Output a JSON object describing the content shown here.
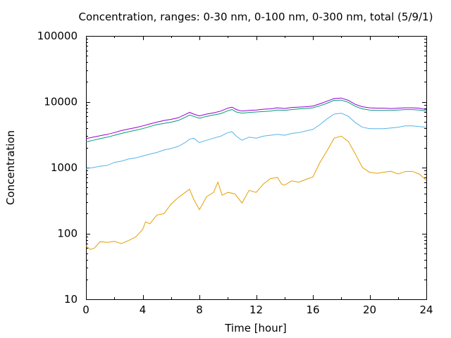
{
  "chart_data": {
    "type": "line",
    "title": "Concentration, ranges: 0-30 nm, 0-100 nm, 0-300 nm, total (5/9/1)",
    "xlabel": "Time [hour]",
    "ylabel": "Concentration",
    "xlim": [
      0,
      24
    ],
    "ylim": [
      10,
      100000
    ],
    "yscale": "log",
    "grid": false,
    "legend": "none",
    "xticks": [
      0,
      4,
      8,
      12,
      16,
      20,
      24
    ],
    "xtick_labels": [
      "0",
      "4",
      "8",
      "12",
      "16",
      "20",
      "24"
    ],
    "yticks": [
      10,
      100,
      1000,
      10000,
      100000
    ],
    "ytick_labels": [
      "10",
      "100",
      "1000",
      "10000",
      "100000"
    ],
    "series": [
      {
        "color": "#e69f00",
        "points": [
          [
            0,
            65
          ],
          [
            0.3,
            57
          ],
          [
            0.6,
            60
          ],
          [
            1,
            75
          ],
          [
            1.5,
            73
          ],
          [
            2,
            76
          ],
          [
            2.5,
            70
          ],
          [
            3,
            78
          ],
          [
            3.5,
            88
          ],
          [
            4,
            115
          ],
          [
            4.2,
            150
          ],
          [
            4.5,
            140
          ],
          [
            5,
            190
          ],
          [
            5.5,
            200
          ],
          [
            6,
            280
          ],
          [
            6.5,
            350
          ],
          [
            7,
            420
          ],
          [
            7.3,
            470
          ],
          [
            7.6,
            330
          ],
          [
            8,
            230
          ],
          [
            8.5,
            360
          ],
          [
            9,
            420
          ],
          [
            9.3,
            600
          ],
          [
            9.6,
            380
          ],
          [
            10,
            420
          ],
          [
            10.5,
            400
          ],
          [
            11,
            290
          ],
          [
            11.5,
            450
          ],
          [
            12,
            420
          ],
          [
            12.5,
            560
          ],
          [
            13,
            680
          ],
          [
            13.5,
            710
          ],
          [
            13.8,
            560
          ],
          [
            14,
            540
          ],
          [
            14.5,
            630
          ],
          [
            15,
            600
          ],
          [
            15.5,
            660
          ],
          [
            16,
            720
          ],
          [
            16.5,
            1200
          ],
          [
            17,
            1800
          ],
          [
            17.5,
            2800
          ],
          [
            18,
            3000
          ],
          [
            18.5,
            2500
          ],
          [
            19,
            1600
          ],
          [
            19.5,
            1000
          ],
          [
            20,
            850
          ],
          [
            20.5,
            820
          ],
          [
            21,
            850
          ],
          [
            21.5,
            880
          ],
          [
            22,
            800
          ],
          [
            22.5,
            870
          ],
          [
            23,
            880
          ],
          [
            23.5,
            800
          ],
          [
            24,
            640
          ]
        ]
      },
      {
        "color": "#56b4e9",
        "points": [
          [
            0,
            970
          ],
          [
            0.5,
            1000
          ],
          [
            1,
            1050
          ],
          [
            1.5,
            1080
          ],
          [
            2,
            1200
          ],
          [
            2.5,
            1250
          ],
          [
            3,
            1350
          ],
          [
            3.5,
            1400
          ],
          [
            4,
            1500
          ],
          [
            4.5,
            1600
          ],
          [
            5,
            1700
          ],
          [
            5.5,
            1850
          ],
          [
            6,
            1950
          ],
          [
            6.5,
            2100
          ],
          [
            7,
            2400
          ],
          [
            7.3,
            2700
          ],
          [
            7.6,
            2800
          ],
          [
            8,
            2400
          ],
          [
            8.5,
            2600
          ],
          [
            9,
            2800
          ],
          [
            9.5,
            3000
          ],
          [
            10,
            3400
          ],
          [
            10.3,
            3500
          ],
          [
            10.6,
            3000
          ],
          [
            11,
            2600
          ],
          [
            11.5,
            2900
          ],
          [
            12,
            2800
          ],
          [
            12.5,
            3000
          ],
          [
            13,
            3100
          ],
          [
            13.5,
            3200
          ],
          [
            14,
            3100
          ],
          [
            14.5,
            3300
          ],
          [
            15,
            3400
          ],
          [
            15.5,
            3600
          ],
          [
            16,
            3800
          ],
          [
            16.5,
            4500
          ],
          [
            17,
            5500
          ],
          [
            17.5,
            6500
          ],
          [
            18,
            6700
          ],
          [
            18.5,
            6000
          ],
          [
            19,
            4800
          ],
          [
            19.5,
            4100
          ],
          [
            20,
            3900
          ],
          [
            20.5,
            3900
          ],
          [
            21,
            3900
          ],
          [
            21.5,
            4000
          ],
          [
            22,
            4100
          ],
          [
            22.5,
            4300
          ],
          [
            23,
            4300
          ],
          [
            23.5,
            4200
          ],
          [
            24,
            4100
          ]
        ]
      },
      {
        "color": "#009e73",
        "points": [
          [
            0,
            2450
          ],
          [
            0.5,
            2600
          ],
          [
            1,
            2750
          ],
          [
            1.5,
            2900
          ],
          [
            2,
            3100
          ],
          [
            2.5,
            3300
          ],
          [
            3,
            3500
          ],
          [
            3.5,
            3700
          ],
          [
            4,
            3900
          ],
          [
            4.5,
            4200
          ],
          [
            5,
            4500
          ],
          [
            5.5,
            4700
          ],
          [
            6,
            4900
          ],
          [
            6.5,
            5200
          ],
          [
            7,
            5800
          ],
          [
            7.3,
            6300
          ],
          [
            7.6,
            6000
          ],
          [
            8,
            5600
          ],
          [
            8.5,
            6000
          ],
          [
            9,
            6300
          ],
          [
            9.5,
            6600
          ],
          [
            10,
            7300
          ],
          [
            10.3,
            7600
          ],
          [
            10.6,
            7000
          ],
          [
            11,
            6700
          ],
          [
            11.5,
            6900
          ],
          [
            12,
            7000
          ],
          [
            12.5,
            7100
          ],
          [
            13,
            7200
          ],
          [
            13.5,
            7500
          ],
          [
            14,
            7400
          ],
          [
            14.5,
            7600
          ],
          [
            15,
            7800
          ],
          [
            15.5,
            7900
          ],
          [
            16,
            8100
          ],
          [
            16.5,
            8700
          ],
          [
            17,
            9500
          ],
          [
            17.5,
            10500
          ],
          [
            18,
            10600
          ],
          [
            18.5,
            9800
          ],
          [
            19,
            8500
          ],
          [
            19.5,
            7800
          ],
          [
            20,
            7500
          ],
          [
            20.5,
            7400
          ],
          [
            21,
            7400
          ],
          [
            21.5,
            7400
          ],
          [
            22,
            7500
          ],
          [
            22.5,
            7600
          ],
          [
            23,
            7600
          ],
          [
            23.5,
            7500
          ],
          [
            24,
            7200
          ]
        ]
      },
      {
        "color": "#9400d3",
        "points": [
          [
            0,
            2750
          ],
          [
            0.5,
            2900
          ],
          [
            1,
            3050
          ],
          [
            1.5,
            3200
          ],
          [
            2,
            3400
          ],
          [
            2.5,
            3650
          ],
          [
            3,
            3850
          ],
          [
            3.5,
            4050
          ],
          [
            4,
            4300
          ],
          [
            4.5,
            4600
          ],
          [
            5,
            4900
          ],
          [
            5.5,
            5200
          ],
          [
            6,
            5400
          ],
          [
            6.5,
            5700
          ],
          [
            7,
            6400
          ],
          [
            7.3,
            6900
          ],
          [
            7.6,
            6500
          ],
          [
            8,
            6100
          ],
          [
            8.5,
            6500
          ],
          [
            9,
            6800
          ],
          [
            9.5,
            7200
          ],
          [
            10,
            8000
          ],
          [
            10.3,
            8300
          ],
          [
            10.6,
            7600
          ],
          [
            11,
            7200
          ],
          [
            11.5,
            7400
          ],
          [
            12,
            7500
          ],
          [
            12.5,
            7700
          ],
          [
            13,
            7800
          ],
          [
            13.5,
            8100
          ],
          [
            14,
            7900
          ],
          [
            14.5,
            8200
          ],
          [
            15,
            8300
          ],
          [
            15.5,
            8400
          ],
          [
            16,
            8600
          ],
          [
            16.5,
            9300
          ],
          [
            17,
            10200
          ],
          [
            17.5,
            11200
          ],
          [
            18,
            11400
          ],
          [
            18.5,
            10500
          ],
          [
            19,
            9100
          ],
          [
            19.5,
            8400
          ],
          [
            20,
            8100
          ],
          [
            20.5,
            8000
          ],
          [
            21,
            8000
          ],
          [
            21.5,
            7900
          ],
          [
            22,
            8000
          ],
          [
            22.5,
            8100
          ],
          [
            23,
            8100
          ],
          [
            23.5,
            8000
          ],
          [
            24,
            7600
          ]
        ]
      }
    ]
  }
}
